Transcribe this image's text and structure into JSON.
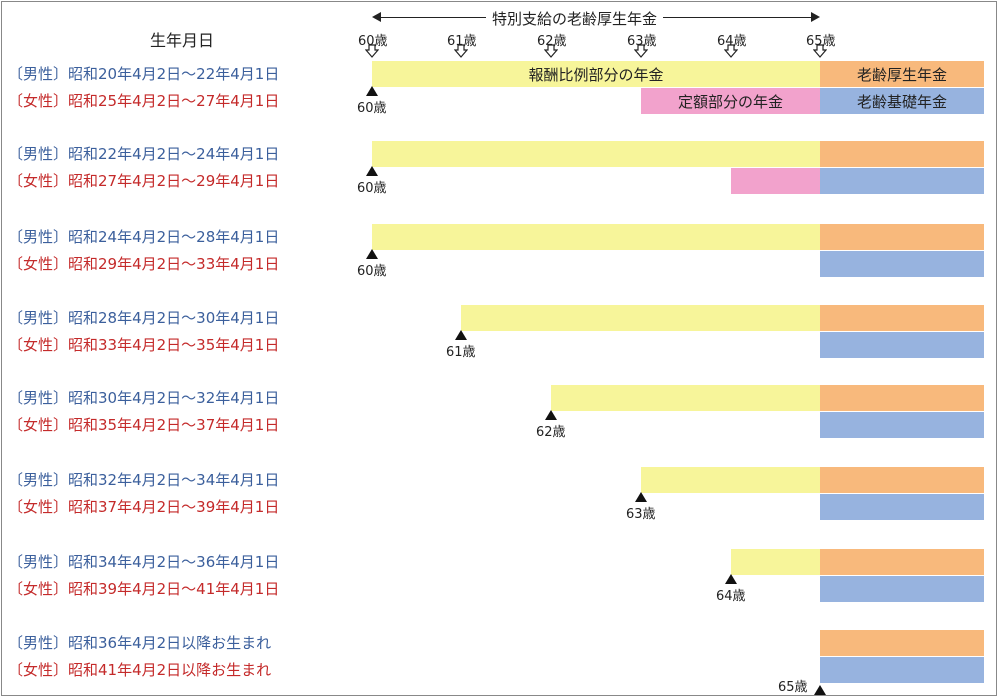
{
  "header": {
    "dob_column_title": "生年月日",
    "span_label": "特別支給の老齢厚生年金",
    "ages": [
      "60歳",
      "61歳",
      "62歳",
      "63歳",
      "64歳",
      "65歳"
    ]
  },
  "bar_labels": {
    "earnings_related": "報酬比例部分の年金",
    "fixed_amount": "定額部分の年金",
    "old_age_employees": "老齢厚生年金",
    "old_age_basic": "老齢基礎年金"
  },
  "groups": [
    {
      "male": "〔男性〕昭和20年4月2日〜22年4月1日",
      "female": "〔女性〕昭和25年4月2日〜27年4月1日",
      "start_age": "60歳",
      "start_index": 0,
      "fixed_start_index": 3
    },
    {
      "male": "〔男性〕昭和22年4月2日〜24年4月1日",
      "female": "〔女性〕昭和27年4月2日〜29年4月1日",
      "start_age": "60歳",
      "start_index": 0,
      "fixed_start_index": 4
    },
    {
      "male": "〔男性〕昭和24年4月2日〜28年4月1日",
      "female": "〔女性〕昭和29年4月2日〜33年4月1日",
      "start_age": "60歳",
      "start_index": 0
    },
    {
      "male": "〔男性〕昭和28年4月2日〜30年4月1日",
      "female": "〔女性〕昭和33年4月2日〜35年4月1日",
      "start_age": "61歳",
      "start_index": 1
    },
    {
      "male": "〔男性〕昭和30年4月2日〜32年4月1日",
      "female": "〔女性〕昭和35年4月2日〜37年4月1日",
      "start_age": "62歳",
      "start_index": 2
    },
    {
      "male": "〔男性〕昭和32年4月2日〜34年4月1日",
      "female": "〔女性〕昭和37年4月2日〜39年4月1日",
      "start_age": "63歳",
      "start_index": 3
    },
    {
      "male": "〔男性〕昭和34年4月2日〜36年4月1日",
      "female": "〔女性〕昭和39年4月2日〜41年4月1日",
      "start_age": "64歳",
      "start_index": 4
    },
    {
      "male": "〔男性〕昭和36年4月2日以降お生まれ",
      "female": "〔女性〕昭和41年4月2日以降お生まれ",
      "start_age": "65歳",
      "start_index": 5
    }
  ],
  "colors": {
    "earnings_related": "#f7f59a",
    "fixed_amount": "#f2a2cc",
    "old_age_employees": "#f8b97c",
    "old_age_basic": "#97b3df",
    "male_text": "#3b5f9c",
    "female_text": "#c42a2a"
  }
}
